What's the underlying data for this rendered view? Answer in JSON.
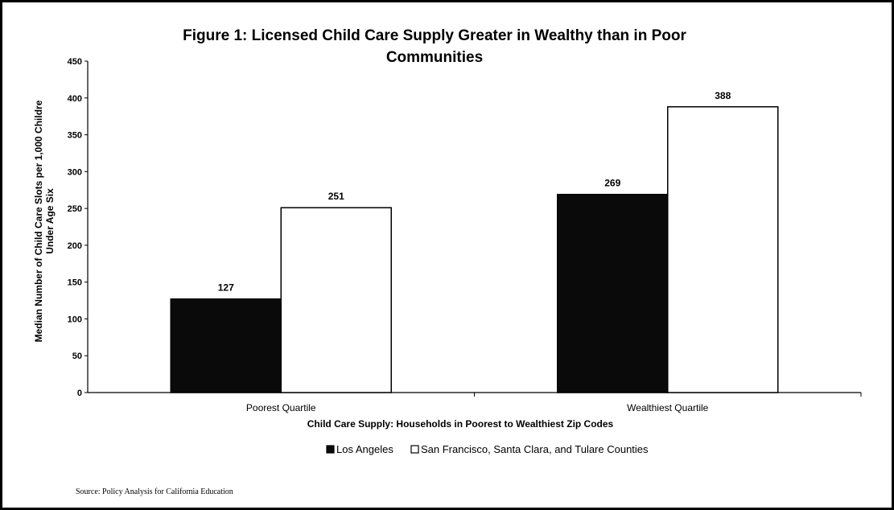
{
  "chart_data": {
    "type": "bar",
    "title_line1": "Figure 1: Licensed Child Care Supply Greater in Wealthy than in Poor",
    "title_line2": "Communities",
    "categories": [
      "Poorest Quartile",
      "Wealthiest Quartile"
    ],
    "series": [
      {
        "name": "Los Angeles",
        "values": [
          127,
          269
        ],
        "color": "#0a0a0a"
      },
      {
        "name": "San Francisco, Santa Clara, and Tulare Counties",
        "values": [
          251,
          388
        ],
        "color": "#ffffff"
      }
    ],
    "xlabel": "Child Care Supply: Households in Poorest to Wealthiest Zip Codes",
    "ylabel_line1": "Median Number of Child Care Slots per 1,000 Childre",
    "ylabel_line2": "Under Age Six",
    "ylim": [
      0,
      450
    ],
    "yticks": [
      0,
      50,
      100,
      150,
      200,
      250,
      300,
      350,
      400,
      450
    ],
    "grid": false,
    "legend_position": "bottom"
  },
  "source": "Source: Policy Analysis for California Education"
}
